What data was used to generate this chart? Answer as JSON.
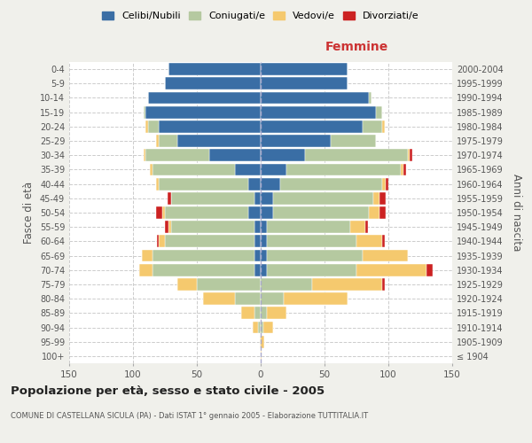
{
  "age_groups": [
    "100+",
    "95-99",
    "90-94",
    "85-89",
    "80-84",
    "75-79",
    "70-74",
    "65-69",
    "60-64",
    "55-59",
    "50-54",
    "45-49",
    "40-44",
    "35-39",
    "30-34",
    "25-29",
    "20-24",
    "15-19",
    "10-14",
    "5-9",
    "0-4"
  ],
  "birth_years": [
    "≤ 1904",
    "1905-1909",
    "1910-1914",
    "1915-1919",
    "1920-1924",
    "1925-1929",
    "1930-1934",
    "1935-1939",
    "1940-1944",
    "1945-1949",
    "1950-1954",
    "1955-1959",
    "1960-1964",
    "1965-1969",
    "1970-1974",
    "1975-1979",
    "1980-1984",
    "1985-1989",
    "1990-1994",
    "1995-1999",
    "2000-2004"
  ],
  "colors": {
    "celibi": "#3a6ea5",
    "coniugati": "#b5c9a0",
    "vedovi": "#f5c96e",
    "divorziati": "#cc2222"
  },
  "males": {
    "celibi": [
      0,
      0,
      0,
      0,
      0,
      0,
      5,
      5,
      5,
      5,
      10,
      5,
      10,
      20,
      40,
      65,
      80,
      90,
      88,
      75,
      72
    ],
    "coniugati": [
      0,
      0,
      2,
      5,
      20,
      50,
      80,
      80,
      70,
      65,
      65,
      65,
      70,
      65,
      50,
      15,
      8,
      2,
      0,
      0,
      0
    ],
    "vedovi": [
      0,
      1,
      4,
      10,
      25,
      15,
      10,
      8,
      5,
      2,
      2,
      0,
      2,
      2,
      2,
      2,
      2,
      0,
      0,
      0,
      0
    ],
    "divorziati": [
      0,
      0,
      0,
      0,
      0,
      0,
      0,
      0,
      1,
      3,
      5,
      3,
      0,
      0,
      0,
      0,
      0,
      0,
      0,
      0,
      0
    ]
  },
  "females": {
    "celibi": [
      0,
      0,
      0,
      0,
      0,
      0,
      5,
      5,
      5,
      5,
      10,
      10,
      15,
      20,
      35,
      55,
      80,
      90,
      85,
      68,
      68
    ],
    "coniugati": [
      0,
      0,
      2,
      5,
      18,
      40,
      70,
      75,
      70,
      65,
      75,
      78,
      80,
      90,
      80,
      35,
      15,
      5,
      2,
      0,
      0
    ],
    "vedovi": [
      1,
      3,
      8,
      15,
      50,
      55,
      55,
      35,
      20,
      12,
      8,
      5,
      3,
      2,
      2,
      0,
      2,
      0,
      0,
      0,
      0
    ],
    "divorziati": [
      0,
      0,
      0,
      0,
      0,
      2,
      5,
      0,
      2,
      2,
      5,
      5,
      2,
      2,
      2,
      0,
      0,
      0,
      0,
      0,
      0
    ]
  },
  "xlim": 150,
  "title": "Popolazione per età, sesso e stato civile - 2005",
  "subtitle": "COMUNE DI CASTELLANA SICULA (PA) - Dati ISTAT 1° gennaio 2005 - Elaborazione TUTTITALIA.IT",
  "xlabel_right": "Femmine",
  "ylabel_left": "Fasce di età",
  "ylabel_right": "Anni di nascita",
  "legend_labels": [
    "Celibi/Nubili",
    "Coniugati/e",
    "Vedovi/e",
    "Divorziati/e"
  ],
  "bg_color": "#f0f0eb",
  "plot_bg": "#ffffff"
}
